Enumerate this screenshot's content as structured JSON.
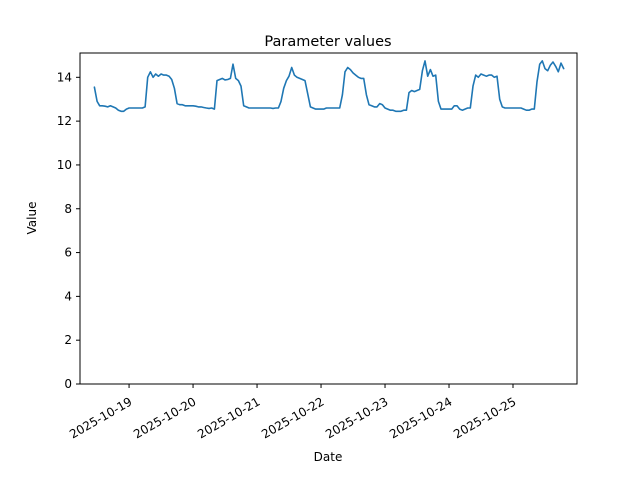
{
  "chart_data": {
    "type": "line",
    "title": "Parameter values",
    "xlabel": "Date",
    "ylabel": "Value",
    "grid": false,
    "legend": "none",
    "background": "#ffffff",
    "axis_color": "#000000",
    "line_color": "#1f77b4",
    "line_width": 1.6,
    "ylim": [
      0,
      15.11
    ],
    "yticks": [
      0,
      2,
      4,
      6,
      8,
      10,
      12,
      14
    ],
    "x_epoch": "2025-10-18 00:00",
    "x_unit": "hours_since_x_epoch",
    "xlim_hours": [
      5.6,
      192
    ],
    "xticks": [
      {
        "hour": 24,
        "label": "2025-10-19"
      },
      {
        "hour": 48,
        "label": "2025-10-20"
      },
      {
        "hour": 72,
        "label": "2025-10-21"
      },
      {
        "hour": 96,
        "label": "2025-10-22"
      },
      {
        "hour": 120,
        "label": "2025-10-23"
      },
      {
        "hour": 144,
        "label": "2025-10-24"
      },
      {
        "hour": 168,
        "label": "2025-10-25"
      }
    ],
    "series": [
      {
        "name": "parameter-values",
        "color": "#1f77b4",
        "start_hour": 11,
        "step_hours": 1,
        "values": [
          13.55,
          12.9,
          12.7,
          12.7,
          12.68,
          12.65,
          12.7,
          12.65,
          12.6,
          12.5,
          12.45,
          12.45,
          12.55,
          12.6,
          12.6,
          12.6,
          12.6,
          12.6,
          12.6,
          12.65,
          14.0,
          14.25,
          14.0,
          14.15,
          14.05,
          14.15,
          14.1,
          14.1,
          14.05,
          13.9,
          13.5,
          12.8,
          12.75,
          12.75,
          12.7,
          12.7,
          12.7,
          12.7,
          12.68,
          12.65,
          12.65,
          12.62,
          12.6,
          12.58,
          12.6,
          12.55,
          13.85,
          13.9,
          13.95,
          13.88,
          13.9,
          13.95,
          14.6,
          13.95,
          13.85,
          13.6,
          12.7,
          12.65,
          12.6,
          12.6,
          12.6,
          12.6,
          12.6,
          12.6,
          12.6,
          12.6,
          12.6,
          12.58,
          12.6,
          12.6,
          12.9,
          13.5,
          13.85,
          14.05,
          14.45,
          14.1,
          14.0,
          13.95,
          13.9,
          13.85,
          13.25,
          12.65,
          12.6,
          12.55,
          12.55,
          12.55,
          12.55,
          12.6,
          12.6,
          12.6,
          12.6,
          12.6,
          12.6,
          13.2,
          14.25,
          14.45,
          14.35,
          14.2,
          14.1,
          14.0,
          13.95,
          13.95,
          13.2,
          12.75,
          12.7,
          12.65,
          12.65,
          12.8,
          12.75,
          12.6,
          12.55,
          12.5,
          12.5,
          12.45,
          12.45,
          12.45,
          12.5,
          12.5,
          13.3,
          13.4,
          13.35,
          13.4,
          13.45,
          14.3,
          14.75,
          14.05,
          14.35,
          14.05,
          14.1,
          12.9,
          12.55,
          12.55,
          12.55,
          12.55,
          12.55,
          12.7,
          12.7,
          12.55,
          12.5,
          12.55,
          12.6,
          12.6,
          13.6,
          14.1,
          14.0,
          14.15,
          14.1,
          14.05,
          14.1,
          14.1,
          14.0,
          14.05,
          13.0,
          12.65,
          12.6,
          12.6,
          12.6,
          12.6,
          12.6,
          12.6,
          12.6,
          12.55,
          12.5,
          12.5,
          12.55,
          12.55,
          13.8,
          14.6,
          14.75,
          14.4,
          14.3,
          14.55,
          14.7,
          14.5,
          14.25,
          14.65,
          14.4
        ]
      }
    ]
  }
}
